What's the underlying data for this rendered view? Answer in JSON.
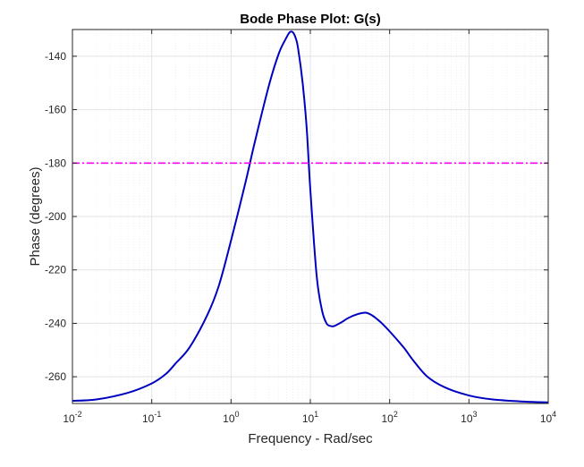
{
  "chart_data": {
    "type": "line",
    "title": "Bode Phase Plot: G(s)",
    "xlabel": "Frequency - Rad/sec",
    "ylabel": "Phase (degrees)",
    "xscale": "log",
    "xlim": [
      0.01,
      10000
    ],
    "ylim": [
      -270,
      -130
    ],
    "grid": true,
    "x_ticks": [
      {
        "value": 0.01,
        "label_base": "10",
        "label_exp": "-2"
      },
      {
        "value": 0.1,
        "label_base": "10",
        "label_exp": "-1"
      },
      {
        "value": 1,
        "label_base": "10",
        "label_exp": "0"
      },
      {
        "value": 10,
        "label_base": "10",
        "label_exp": "1"
      },
      {
        "value": 100,
        "label_base": "10",
        "label_exp": "2"
      },
      {
        "value": 1000,
        "label_base": "10",
        "label_exp": "3"
      },
      {
        "value": 10000,
        "label_base": "10",
        "label_exp": "4"
      }
    ],
    "y_ticks": [
      {
        "value": -140,
        "label": "-140"
      },
      {
        "value": -160,
        "label": "-160"
      },
      {
        "value": -180,
        "label": "-180"
      },
      {
        "value": -200,
        "label": "-200"
      },
      {
        "value": -220,
        "label": "-220"
      },
      {
        "value": -240,
        "label": "-240"
      },
      {
        "value": -260,
        "label": "-260"
      }
    ],
    "series": [
      {
        "color": "#0000c0",
        "style": "solid",
        "x": [
          0.01,
          0.02,
          0.05,
          0.1,
          0.15,
          0.2,
          0.3,
          0.5,
          0.7,
          1,
          1.5,
          2,
          3,
          4,
          5,
          5.5,
          6,
          6.5,
          7,
          8,
          9,
          10,
          12,
          14,
          16,
          18,
          20,
          25,
          30,
          40,
          50,
          60,
          70,
          80,
          100,
          150,
          200,
          300,
          500,
          1000,
          2000,
          5000,
          10000
        ],
        "y": [
          -269,
          -268.5,
          -266,
          -262.5,
          -259,
          -255,
          -249,
          -237,
          -226,
          -209,
          -188,
          -172,
          -151,
          -139,
          -133,
          -131,
          -131,
          -133,
          -137,
          -150,
          -167,
          -190,
          -222,
          -235,
          -240,
          -241,
          -241,
          -239.5,
          -238,
          -236.5,
          -236,
          -237,
          -238.5,
          -240,
          -243,
          -249,
          -254,
          -260,
          -264,
          -267,
          -268.5,
          -269.3,
          -269.6
        ]
      },
      {
        "color": "#ff00ff",
        "style": "dashdot",
        "x": [
          0.01,
          10000
        ],
        "y": [
          -180,
          -180
        ]
      }
    ]
  }
}
